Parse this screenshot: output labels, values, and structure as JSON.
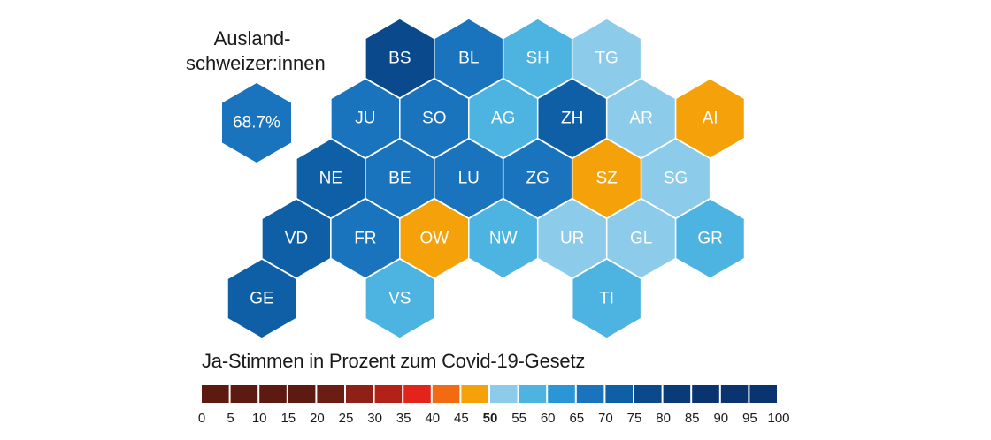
{
  "abroad": {
    "title_line1": "Ausland-",
    "title_line2": "schweizer:innen",
    "value_text": "68.7%",
    "color": "#1a74bd"
  },
  "cantons": [
    {
      "code": "BS",
      "row": 0,
      "col": 3,
      "color": "#0a4a8c"
    },
    {
      "code": "BL",
      "row": 0,
      "col": 4,
      "color": "#1a74bd"
    },
    {
      "code": "SH",
      "row": 0,
      "col": 5,
      "color": "#4db3e0"
    },
    {
      "code": "TG",
      "row": 0,
      "col": 6,
      "color": "#8ccbea"
    },
    {
      "code": "JU",
      "row": 1,
      "col": 2.5,
      "color": "#1a74bd"
    },
    {
      "code": "SO",
      "row": 1,
      "col": 3.5,
      "color": "#1a74bd"
    },
    {
      "code": "AG",
      "row": 1,
      "col": 4.5,
      "color": "#4db3e0"
    },
    {
      "code": "ZH",
      "row": 1,
      "col": 5.5,
      "color": "#0e5fa6"
    },
    {
      "code": "AR",
      "row": 1,
      "col": 6.5,
      "color": "#8ccbea"
    },
    {
      "code": "AI",
      "row": 1,
      "col": 7.5,
      "color": "#f5a10a"
    },
    {
      "code": "NE",
      "row": 2,
      "col": 2,
      "color": "#0e5fa6"
    },
    {
      "code": "BE",
      "row": 2,
      "col": 3,
      "color": "#1a74bd"
    },
    {
      "code": "LU",
      "row": 2,
      "col": 4,
      "color": "#1a74bd"
    },
    {
      "code": "ZG",
      "row": 2,
      "col": 5,
      "color": "#1a74bd"
    },
    {
      "code": "SZ",
      "row": 2,
      "col": 6,
      "color": "#f5a10a"
    },
    {
      "code": "SG",
      "row": 2,
      "col": 7,
      "color": "#8ccbea"
    },
    {
      "code": "VD",
      "row": 3,
      "col": 1.5,
      "color": "#0e5fa6"
    },
    {
      "code": "FR",
      "row": 3,
      "col": 2.5,
      "color": "#1a74bd"
    },
    {
      "code": "OW",
      "row": 3,
      "col": 3.5,
      "color": "#f5a10a"
    },
    {
      "code": "NW",
      "row": 3,
      "col": 4.5,
      "color": "#4db3e0"
    },
    {
      "code": "UR",
      "row": 3,
      "col": 5.5,
      "color": "#8ccbea"
    },
    {
      "code": "GL",
      "row": 3,
      "col": 6.5,
      "color": "#8ccbea"
    },
    {
      "code": "GR",
      "row": 3,
      "col": 7.5,
      "color": "#4db3e0"
    },
    {
      "code": "GE",
      "row": 4,
      "col": 1,
      "color": "#0e5fa6"
    },
    {
      "code": "VS",
      "row": 4,
      "col": 3,
      "color": "#4db3e0"
    },
    {
      "code": "TI",
      "row": 4,
      "col": 6,
      "color": "#4db3e0"
    }
  ],
  "legend": {
    "title": "Ja-Stimmen in Prozent zum Covid-19-Gesetz",
    "ticks": [
      "0",
      "5",
      "10",
      "15",
      "20",
      "25",
      "30",
      "35",
      "40",
      "45",
      "50",
      "55",
      "60",
      "65",
      "70",
      "75",
      "80",
      "85",
      "90",
      "95",
      "100"
    ],
    "bold_tick": "50",
    "colors": [
      "#5c1a10",
      "#5c1a10",
      "#5c1a10",
      "#5c1a10",
      "#6b1d14",
      "#8e2017",
      "#b22218",
      "#e3241b",
      "#f26a12",
      "#f5a10a",
      "#8ccbea",
      "#4db3e0",
      "#2b96d6",
      "#1a74bd",
      "#0e5fa6",
      "#0a4a8c",
      "#0a3a78",
      "#0a3470",
      "#0a3470",
      "#0a3470"
    ]
  }
}
